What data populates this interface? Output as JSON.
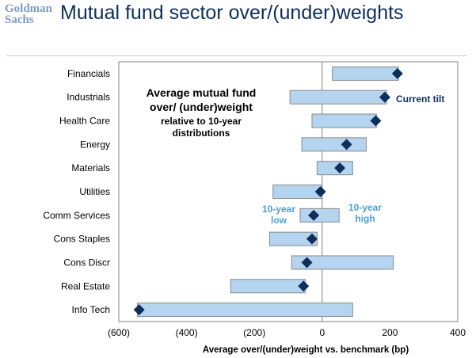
{
  "header": {
    "logo_line1": "Goldman",
    "logo_line2": "Sachs",
    "title": "Mutual fund sector over/(under)weights"
  },
  "colors": {
    "bar_fill": "#b4d4f0",
    "bar_stroke": "#8a8a8a",
    "marker": "#0d2f5c",
    "axis": "#808080",
    "range_label": "#4a9fd8"
  },
  "chart_data": {
    "type": "bar",
    "orientation": "horizontal-floating-range",
    "title": "",
    "xlabel": "Average over/(under)weight vs. benchmark (bp)",
    "ylabel": "",
    "xlim": [
      -600,
      400
    ],
    "xticks": [
      -600,
      -400,
      -200,
      0,
      200,
      400
    ],
    "xtick_labels": [
      "(600)",
      "(400)",
      "(200)",
      "0",
      "200",
      "400"
    ],
    "grid": false,
    "categories": [
      "Financials",
      "Industrials",
      "Health Care",
      "Energy",
      "Materials",
      "Utilities",
      "Comm Services",
      "Cons Staples",
      "Cons Discr",
      "Real Estate",
      "Info Tech"
    ],
    "series": [
      {
        "name": "10-year low",
        "values": [
          30,
          -95,
          -30,
          -60,
          -15,
          -145,
          -65,
          -155,
          -90,
          -270,
          -545
        ]
      },
      {
        "name": "10-year high",
        "values": [
          225,
          190,
          160,
          130,
          90,
          0,
          50,
          -15,
          210,
          -50,
          90
        ]
      },
      {
        "name": "Current tilt",
        "values": [
          222,
          185,
          158,
          72,
          52,
          -5,
          -25,
          -30,
          -45,
          -55,
          -540
        ]
      }
    ],
    "annotations": {
      "inset_line1": "Average mutual fund",
      "inset_line2": "over/ (under)weight",
      "inset_line3": "relative to 10-year",
      "inset_line4": "distributions",
      "current_tilt": "Current tilt",
      "low_line1": "10-year",
      "low_line2": "low",
      "high_line1": "10-year",
      "high_line2": "high"
    }
  }
}
